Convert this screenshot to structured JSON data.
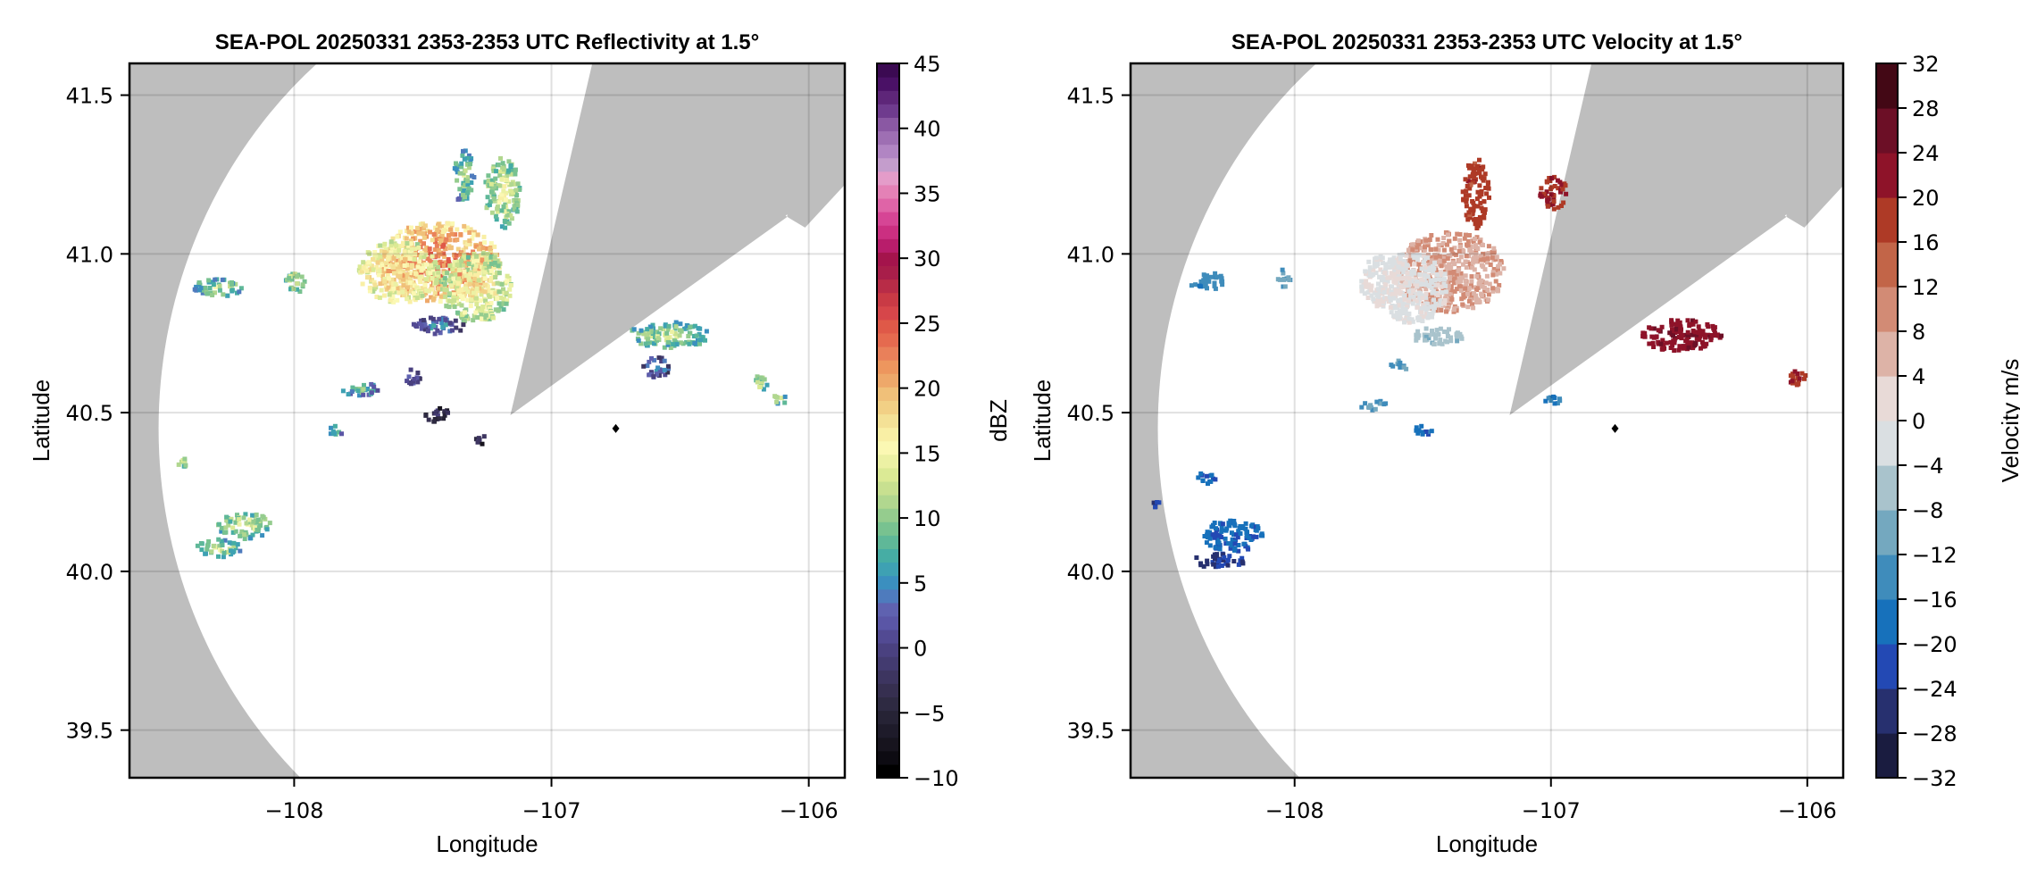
{
  "chart_data": [
    {
      "type": "heatmap",
      "title": "SEA-POL 20250331 2353-2353 UTC Reflectivity at 1.5°",
      "xlabel": "Longitude",
      "ylabel": "Latitude",
      "xlim": [
        -108.64,
        -105.86
      ],
      "ylim": [
        39.35,
        41.6
      ],
      "xticks": [
        -108,
        -107,
        -106
      ],
      "xtick_labels": [
        "−108",
        "−107",
        "−106"
      ],
      "yticks": [
        41.5,
        41.0,
        40.5,
        40.0,
        39.5
      ],
      "ytick_labels": [
        "41.5",
        "41.0",
        "40.5",
        "40.0",
        "39.5"
      ],
      "grid": true,
      "radar_site": {
        "lon": -106.75,
        "lat": 40.45
      },
      "blocked_sectors": "two grey wedges NE of radar",
      "colorbar": {
        "label": "dBZ",
        "range": [
          -10,
          45
        ],
        "ticks": [
          45,
          40,
          35,
          30,
          25,
          20,
          15,
          10,
          5,
          0,
          -5,
          -10
        ],
        "tick_labels": [
          "45",
          "40",
          "35",
          "30",
          "25",
          "20",
          "15",
          "10",
          "5",
          "0",
          "−5",
          "−10"
        ],
        "colors": [
          "#000000",
          "#0d0b12",
          "#17141e",
          "#1e1b2a",
          "#262335",
          "#2e2a42",
          "#362f50",
          "#3d3560",
          "#433b70",
          "#4a4180",
          "#524a93",
          "#5a56a6",
          "#5f62b0",
          "#4e7bbd",
          "#3b8fbf",
          "#3ea1b3",
          "#46ada4",
          "#5fb898",
          "#78c290",
          "#95cc8e",
          "#b1d78f",
          "#c8e090",
          "#dbea95",
          "#ecf1a4",
          "#fbf8b3",
          "#f9efa5",
          "#f4e196",
          "#f2d085",
          "#f0c079",
          "#eea86a",
          "#ed965e",
          "#e9805a",
          "#e56a4f",
          "#df5948",
          "#d6464a",
          "#c93a45",
          "#b82c47",
          "#a81e4a",
          "#a4144c",
          "#b81d6b",
          "#cb2f81",
          "#d64595",
          "#df64a7",
          "#e481b6",
          "#e49cc9",
          "#c49dcc",
          "#b185c3",
          "#9e6fb3",
          "#8a58a3",
          "#6f3b8e",
          "#5e2679",
          "#4a1166",
          "#3b0a52"
        ]
      }
    },
    {
      "type": "heatmap",
      "title": "SEA-POL 20250331 2353-2353 UTC Velocity at 1.5°",
      "xlabel": "Longitude",
      "ylabel": "Latitude",
      "xlim": [
        -108.64,
        -105.86
      ],
      "ylim": [
        39.35,
        41.6
      ],
      "xticks": [
        -108,
        -107,
        -106
      ],
      "xtick_labels": [
        "−108",
        "−107",
        "−106"
      ],
      "yticks": [
        41.5,
        41.0,
        40.5,
        40.0,
        39.5
      ],
      "ytick_labels": [
        "41.5",
        "41.0",
        "40.5",
        "40.0",
        "39.5"
      ],
      "grid": true,
      "radar_site": {
        "lon": -106.75,
        "lat": 40.45
      },
      "colorbar": {
        "label": "Velocity m/s",
        "range": [
          -32,
          32
        ],
        "ticks": [
          32,
          28,
          24,
          20,
          16,
          12,
          8,
          4,
          0,
          -4,
          -8,
          -12,
          -16,
          -20,
          -24,
          -28,
          -32
        ],
        "tick_labels": [
          "32",
          "28",
          "24",
          "20",
          "16",
          "12",
          "8",
          "4",
          "0",
          "−4",
          "−8",
          "−12",
          "−16",
          "−20",
          "−24",
          "−28",
          "−32"
        ],
        "colors": [
          "#1a1c40",
          "#27306f",
          "#2349b4",
          "#1771bb",
          "#3f8cbb",
          "#74a8bf",
          "#a9c3cc",
          "#dadfe2",
          "#e8dad7",
          "#ddb3a7",
          "#d28b75",
          "#c26548",
          "#ae3a26",
          "#8e1329",
          "#6c0f26",
          "#430815"
        ]
      }
    }
  ]
}
